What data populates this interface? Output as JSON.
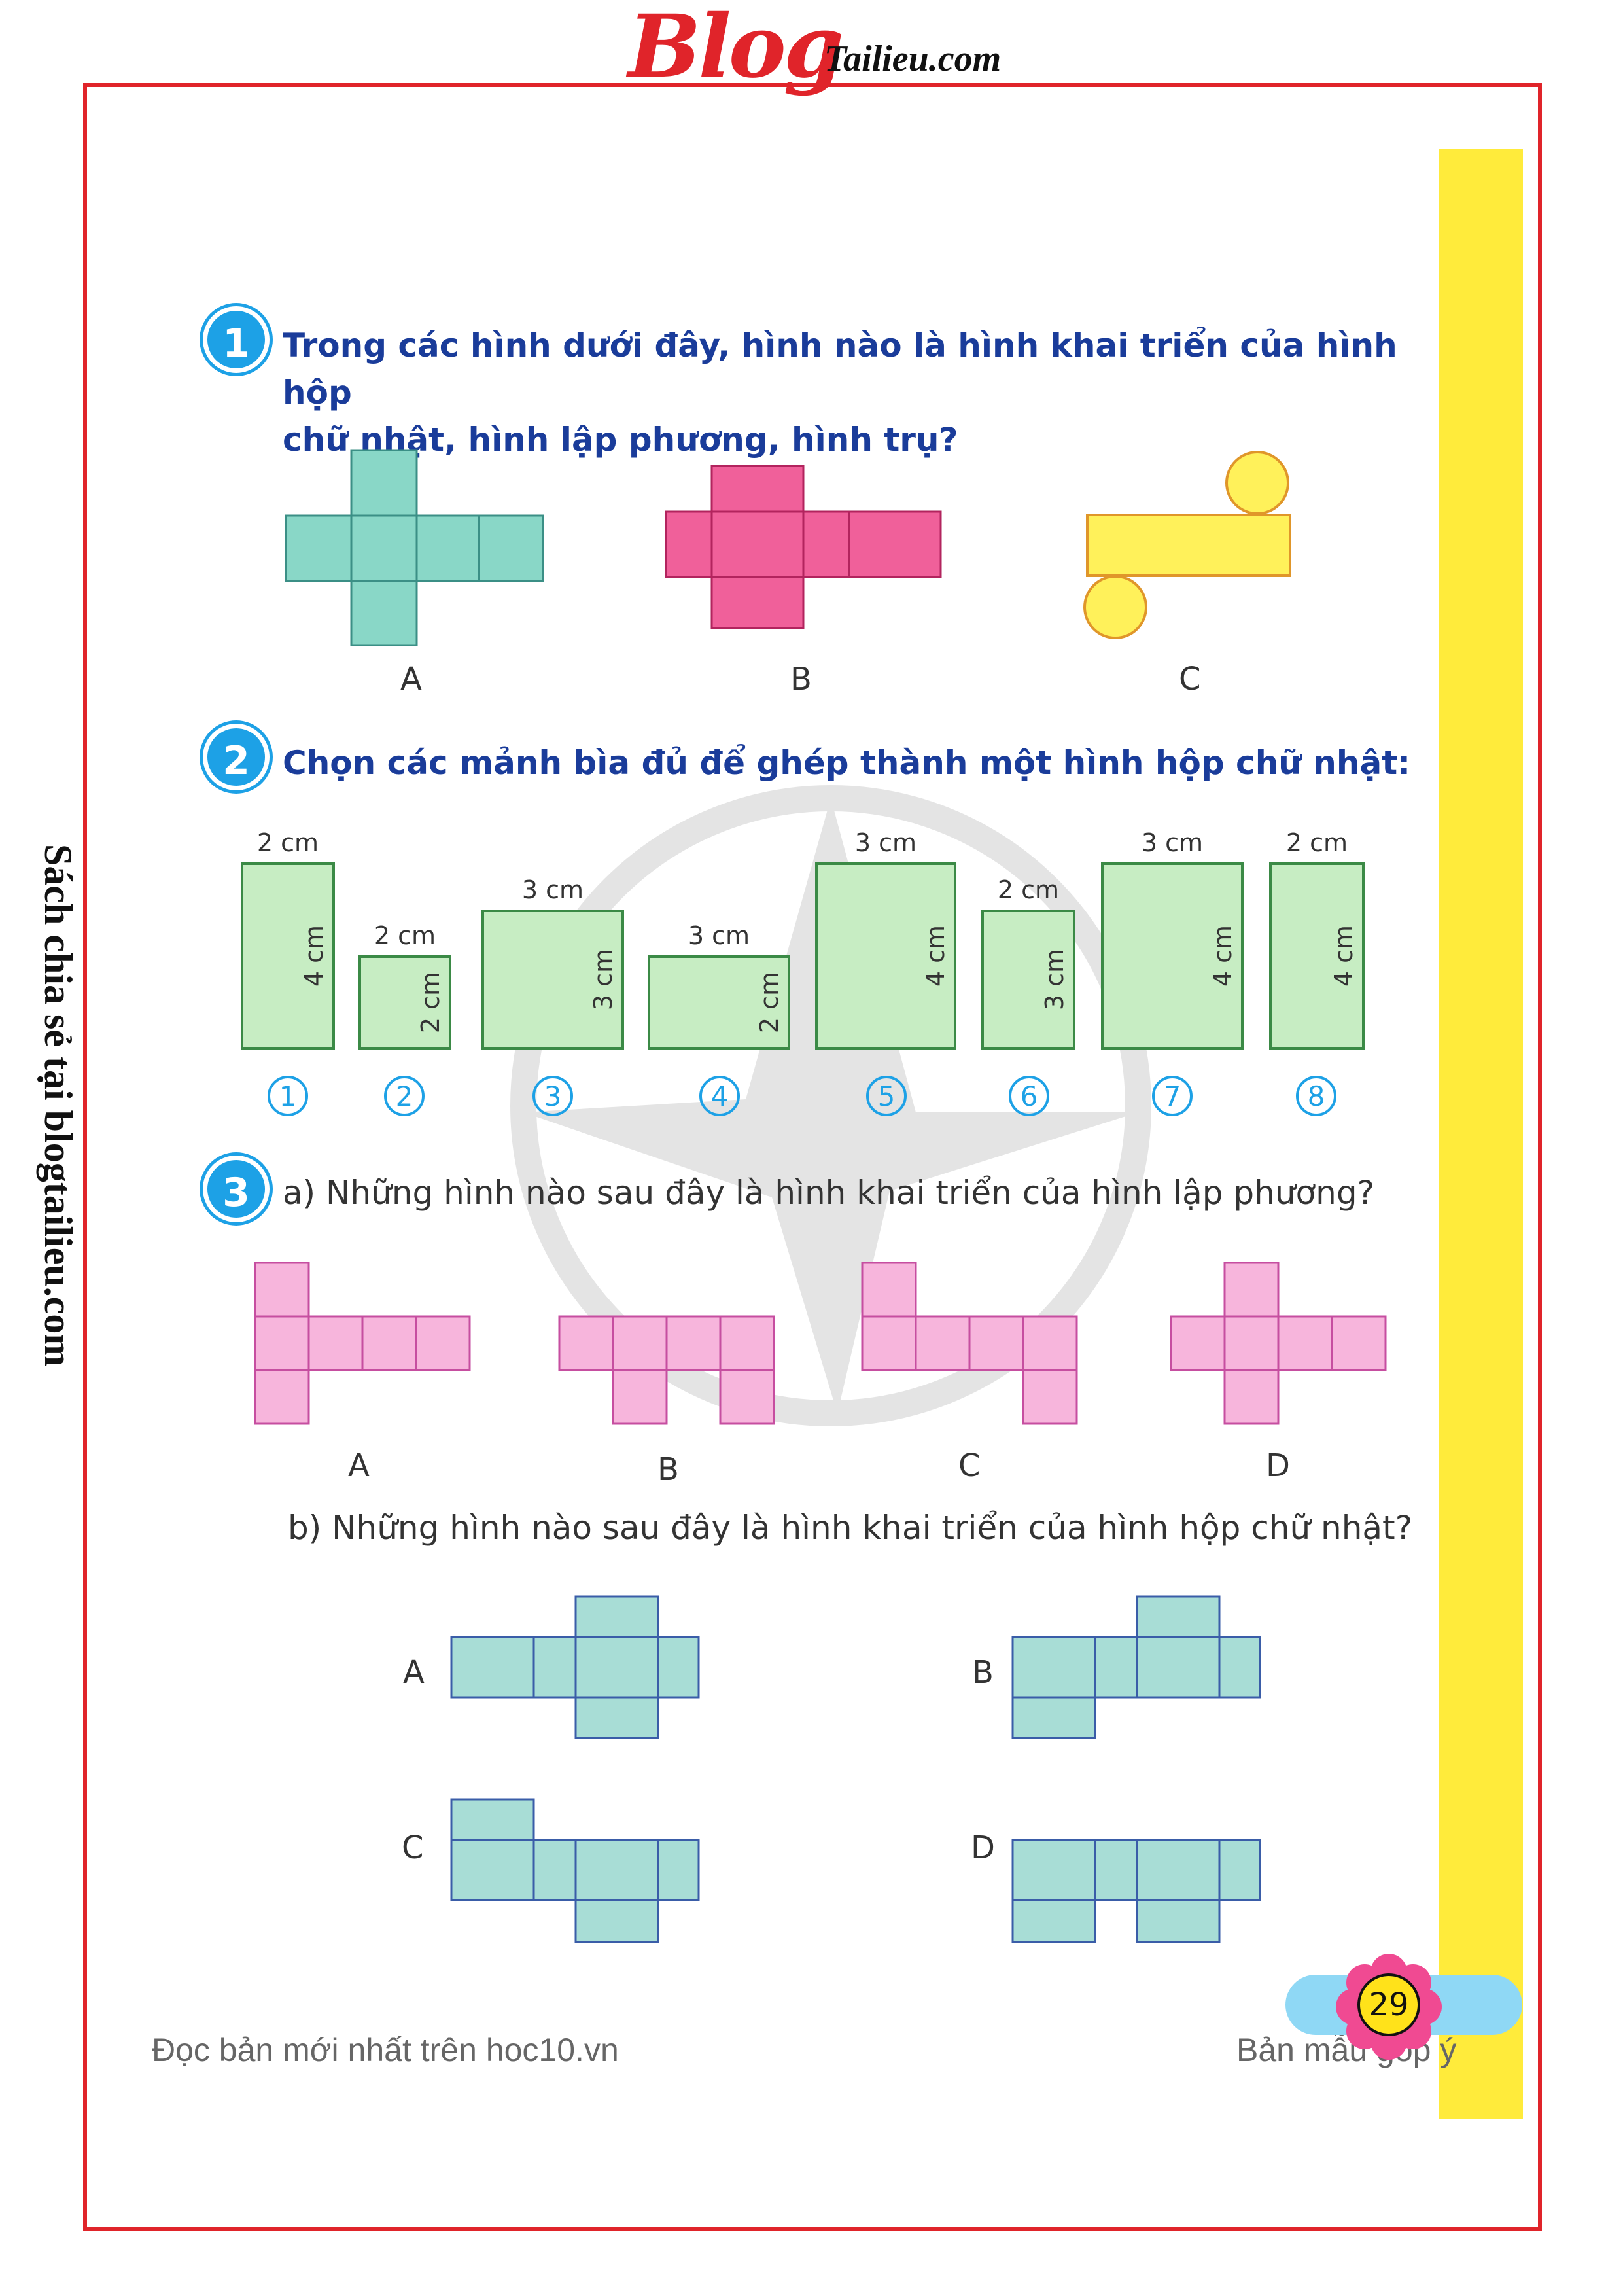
{
  "header": {
    "logo_blog": "Blog",
    "logo_tailieu": "Tailieu.com"
  },
  "side_text": "Sách chia sẻ tại blogtailieu.com",
  "exercise1": {
    "number": "1",
    "title_line1": "Trong các hình dưới đây, hình nào là hình khai triển của hình hộp",
    "title_line2": "chữ nhật, hình lập phương, hình trụ?",
    "labels": [
      "A",
      "B",
      "C"
    ],
    "colors": {
      "a": "#89d7c7",
      "b": "#f0609a",
      "c": "#fff15a"
    }
  },
  "exercise2": {
    "number": "2",
    "title": "Chọn các mảnh bìa đủ để ghép thành một hình hộp chữ nhật:",
    "cards": [
      {
        "num": "1",
        "top": "2 cm",
        "side": "4 cm"
      },
      {
        "num": "2",
        "top": "2 cm",
        "side": "2 cm"
      },
      {
        "num": "3",
        "top": "3 cm",
        "side": "3 cm"
      },
      {
        "num": "4",
        "top": "3 cm",
        "side": "2 cm"
      },
      {
        "num": "5",
        "top": "3 cm",
        "side": "4 cm"
      },
      {
        "num": "6",
        "top": "2 cm",
        "side": "3 cm"
      },
      {
        "num": "7",
        "top": "3 cm",
        "side": "4 cm"
      },
      {
        "num": "8",
        "top": "2 cm",
        "side": "4 cm"
      }
    ]
  },
  "exercise3": {
    "number": "3",
    "part_a": "a) Những hình nào sau đây là hình khai triển của hình lập phương?",
    "part_a_labels": [
      "A",
      "B",
      "C",
      "D"
    ],
    "part_b": "b) Những hình nào sau đây là hình khai triển của hình hộp chữ nhật?",
    "part_b_labels": [
      "A",
      "B",
      "C",
      "D"
    ],
    "colors": {
      "pink": "#f7b5dc",
      "teal": "#a8ddd6"
    }
  },
  "footer": {
    "left": "Đọc bản mới nhất trên hoc10.vn",
    "right": "Bản mẫu góp ý",
    "page_number": "29"
  }
}
